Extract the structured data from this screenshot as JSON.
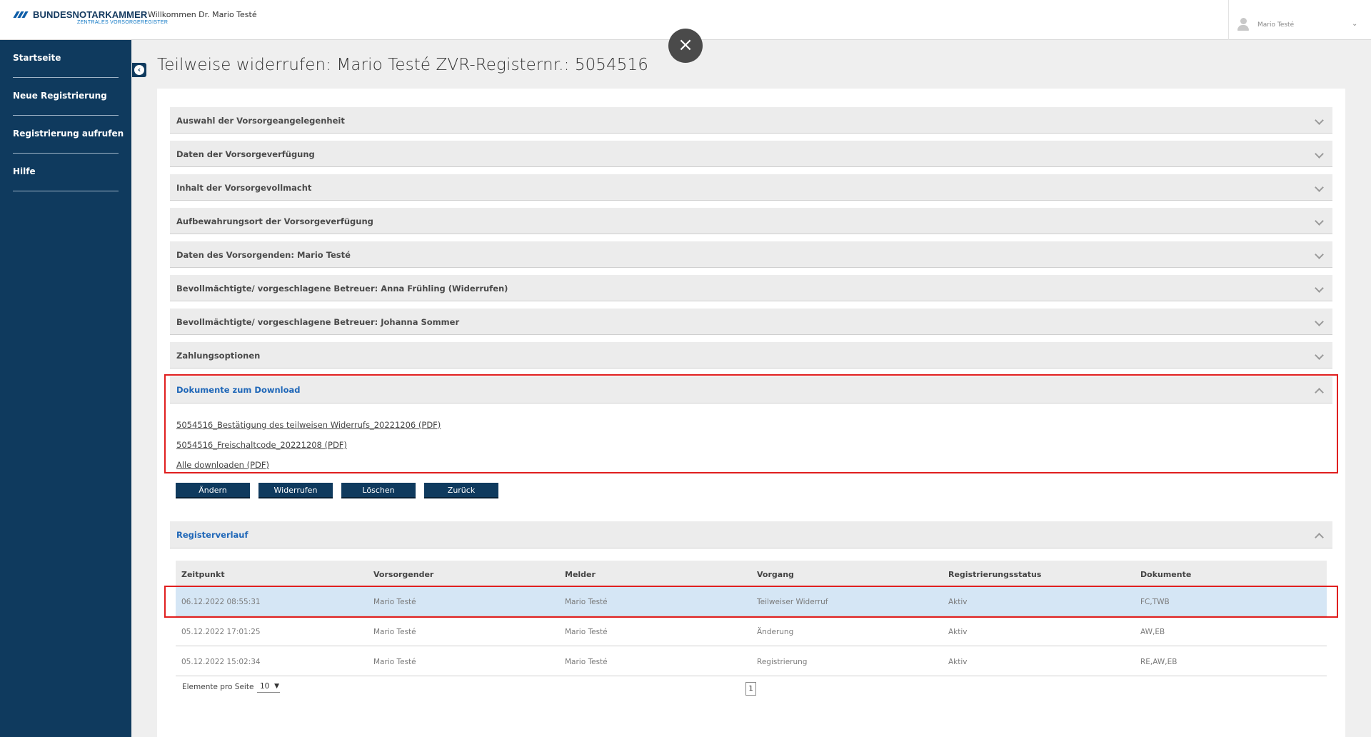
{
  "header": {
    "brand_name": "BUNDESNOTARKAMMER",
    "brand_sub": "ZENTRALES VORSORGEREGISTER",
    "welcome": "Willkommen Dr. Mario Testé",
    "user_name": "Mario Testé",
    "user_icon": "user-icon",
    "chevron": "⌄"
  },
  "sidebar": {
    "items": [
      {
        "label": "Startseite"
      },
      {
        "label": "Neue Registrierung"
      },
      {
        "label": "Registrierung aufrufen"
      },
      {
        "label": "Hilfe"
      }
    ],
    "collapse_glyph": "‹"
  },
  "close_glyph": "×",
  "page_title": "Teilweise widerrufen: Mario Testé ZVR-Registernr.: 5054516",
  "accordion": [
    {
      "label": "Auswahl der Vorsorgeangelegenheit",
      "state": "collapsed"
    },
    {
      "label": "Daten der Vorsorgeverfügung",
      "state": "collapsed"
    },
    {
      "label": "Inhalt der Vorsorgevollmacht",
      "state": "collapsed"
    },
    {
      "label": "Aufbewahrungsort der Vorsorgeverfügung",
      "state": "collapsed"
    },
    {
      "label": "Daten des Vorsorgenden: Mario Testé",
      "state": "collapsed"
    },
    {
      "label": "Bevollmächtigte/ vorgeschlagene Betreuer: Anna Frühling (Widerrufen)",
      "state": "collapsed"
    },
    {
      "label": "Bevollmächtigte/ vorgeschlagene Betreuer: Johanna Sommer",
      "state": "collapsed"
    },
    {
      "label": "Zahlungsoptionen",
      "state": "collapsed"
    }
  ],
  "downloads": {
    "title": "Dokumente zum Download",
    "state": "expanded",
    "links": [
      "5054516_Bestätigung des teilweisen Widerrufs_20221206 (PDF)",
      "5054516_Freischaltcode_20221208 (PDF)",
      "Alle downloaden (PDF)"
    ]
  },
  "actions": {
    "change": "Ändern",
    "revoke": "Widerrufen",
    "delete": "Löschen",
    "back": "Zurück"
  },
  "history": {
    "title": "Registerverlauf",
    "state": "expanded",
    "columns": [
      "Zeitpunkt",
      "Vorsorgender",
      "Melder",
      "Vorgang",
      "Registrierungsstatus",
      "Dokumente"
    ],
    "rows": [
      [
        "06.12.2022 08:55:31",
        "Mario Testé",
        "Mario Testé",
        "Teilweiser Widerruf",
        "Aktiv",
        "FC,TWB"
      ],
      [
        "05.12.2022 17:01:25",
        "Mario Testé",
        "Mario Testé",
        "Änderung",
        "Aktiv",
        "AW,EB"
      ],
      [
        "05.12.2022 15:02:34",
        "Mario Testé",
        "Mario Testé",
        "Registrierung",
        "Aktiv",
        "RE,AW,EB"
      ]
    ],
    "selected_row": 0
  },
  "pagination": {
    "per_page_label": "Elemente pro Seite",
    "per_page_value": "10",
    "current_page": "1"
  },
  "colors": {
    "sidebar": "#0f3a5e",
    "accent_link": "#1f67b8",
    "highlight_box": "#e01f1f",
    "selected_row": "#d5e6f5"
  }
}
